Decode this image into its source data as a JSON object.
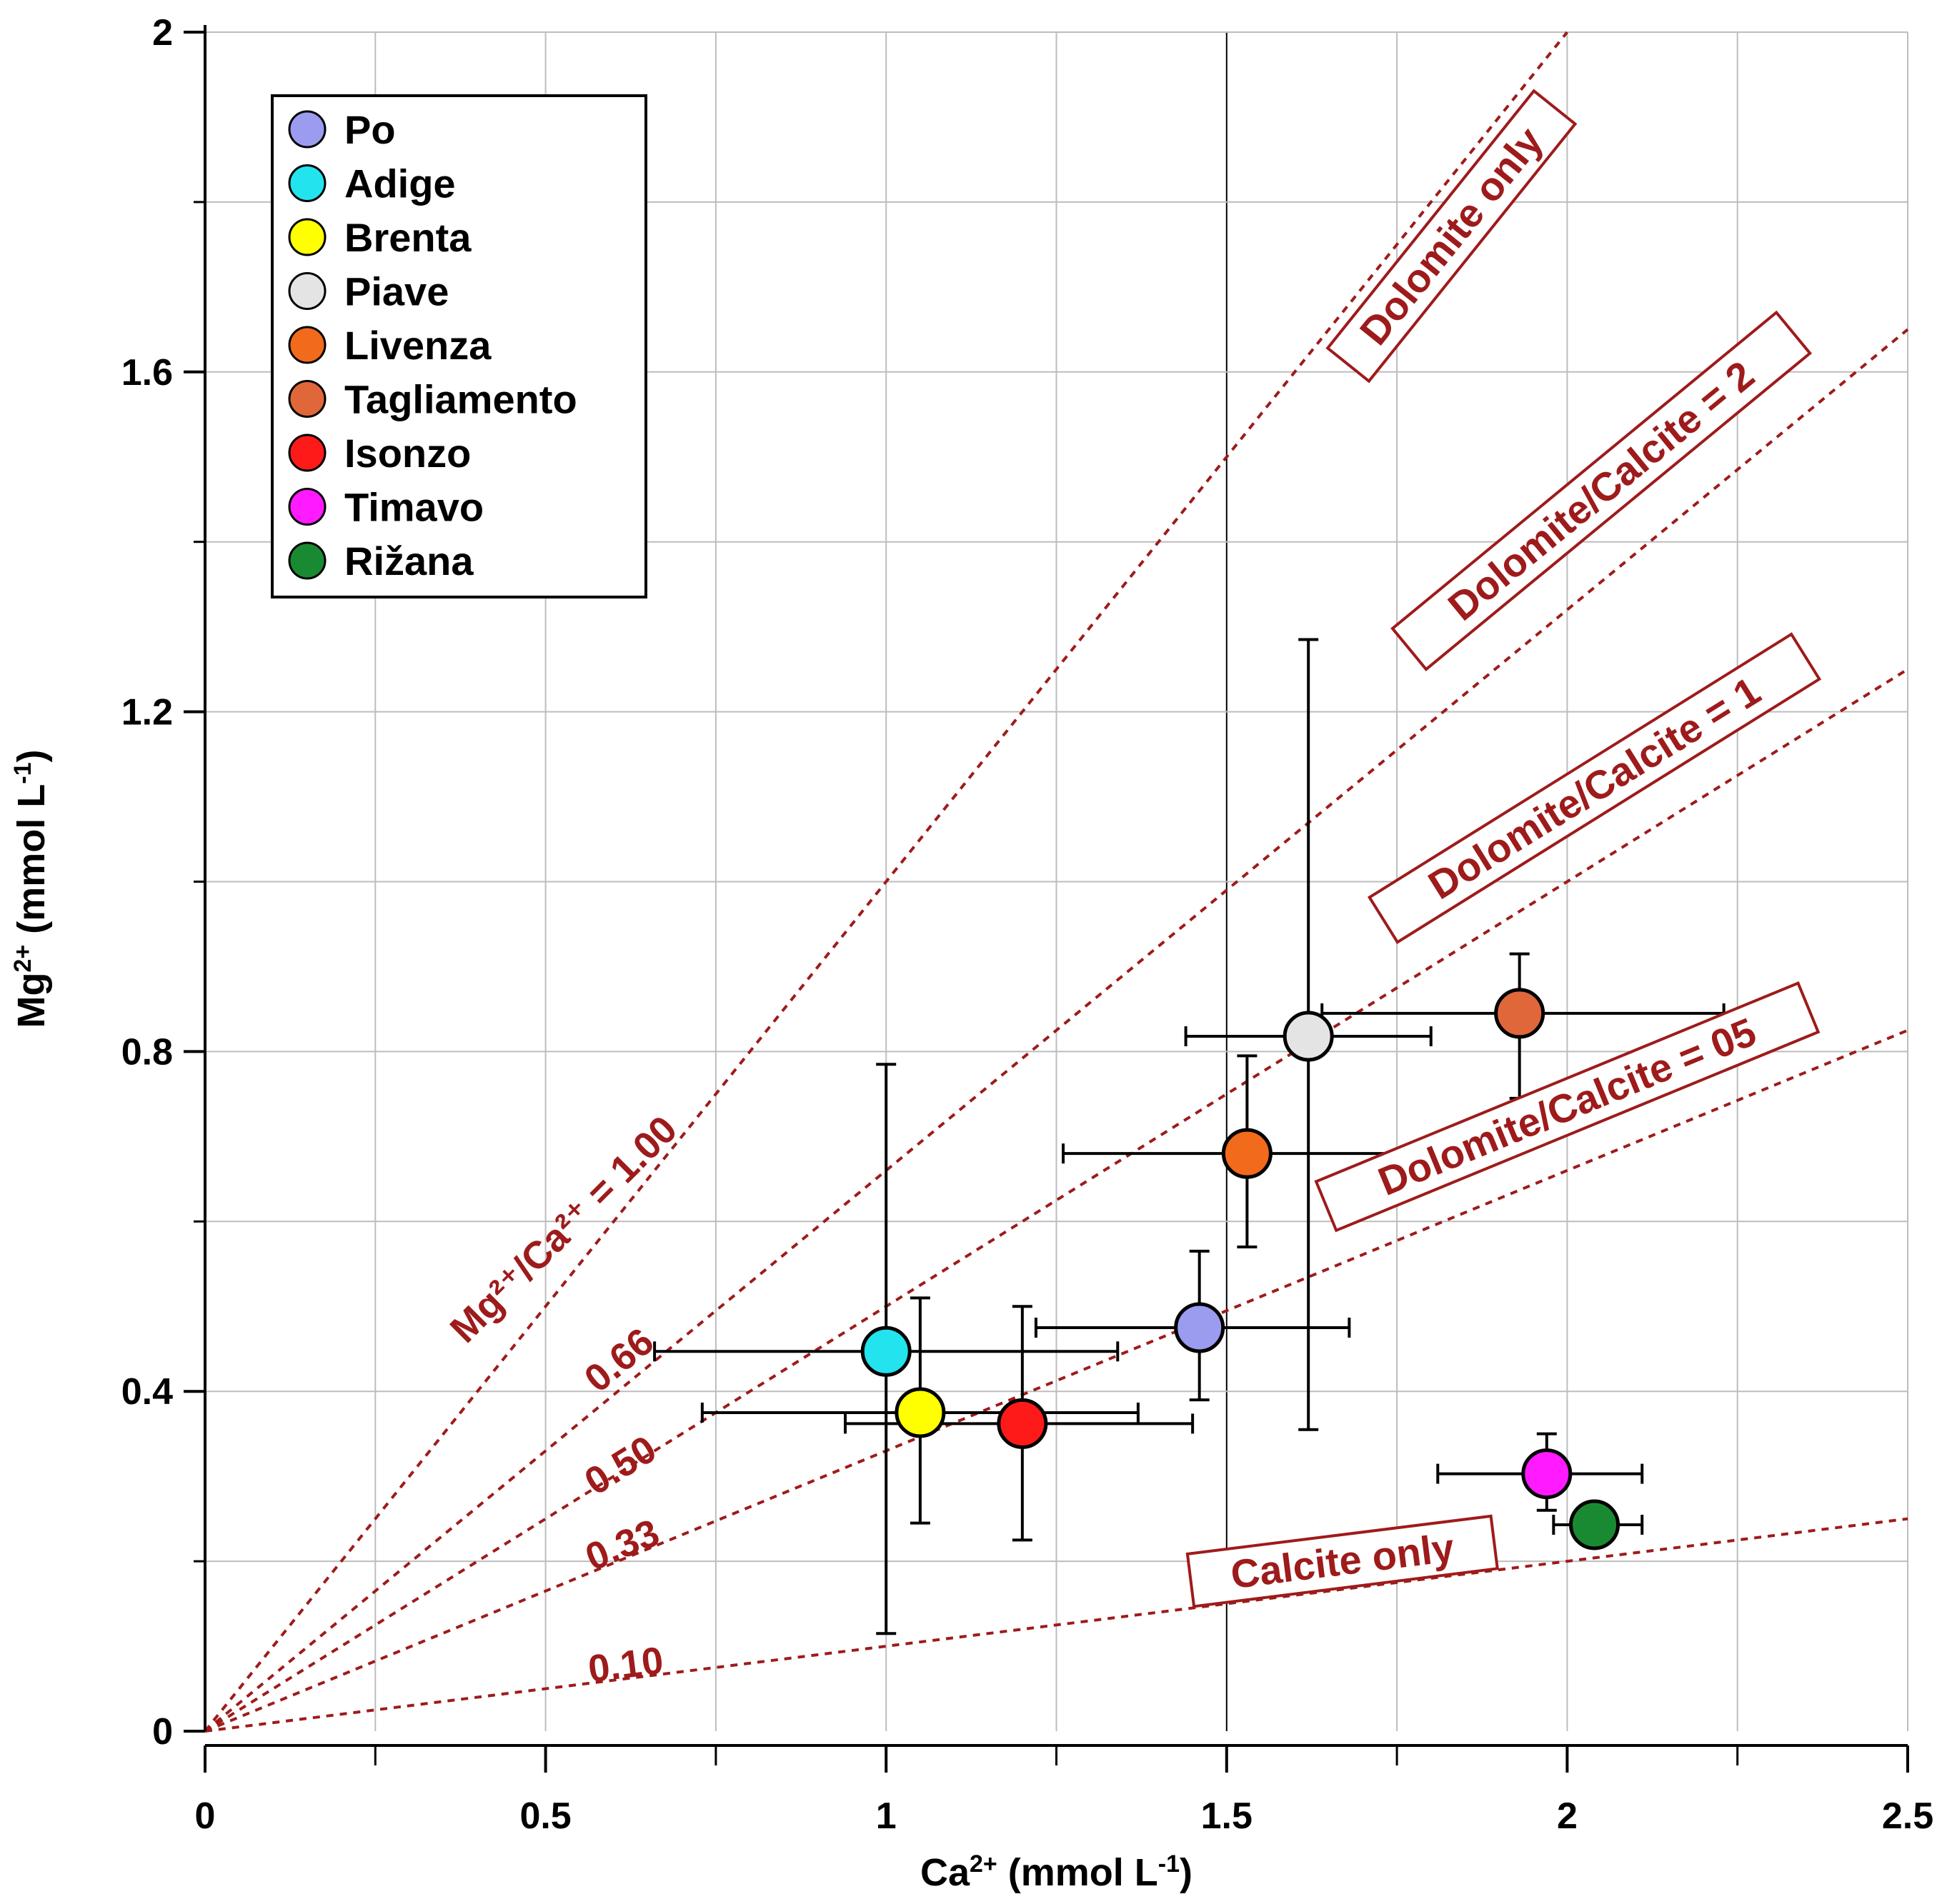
{
  "chart_data": {
    "type": "scatter",
    "title": "",
    "xlabel": {
      "base": "Ca",
      "sup": "2+",
      "rest": " (mmol L",
      "unit_sup": "-1",
      "close": ")"
    },
    "ylabel": {
      "base": "Mg",
      "sup": "2+",
      "rest": " (mmol L",
      "unit_sup": "-1",
      "close": ")"
    },
    "xlim": [
      0,
      2.5
    ],
    "ylim": [
      0,
      2
    ],
    "x_ticks": [
      {
        "value": 0,
        "label": "0"
      },
      {
        "value": 0.5,
        "label": "0.5"
      },
      {
        "value": 1,
        "label": "1"
      },
      {
        "value": 1.5,
        "label": "1.5"
      },
      {
        "value": 2,
        "label": "2"
      },
      {
        "value": 2.5,
        "label": "2.5"
      }
    ],
    "y_ticks": [
      {
        "value": 0,
        "label": "0"
      },
      {
        "value": 0.4,
        "label": "0.4"
      },
      {
        "value": 0.8,
        "label": "0.8"
      },
      {
        "value": 1.2,
        "label": "1.2"
      },
      {
        "value": 1.6,
        "label": "1.6"
      },
      {
        "value": 2,
        "label": "2"
      }
    ],
    "grid": true,
    "legend_position": "top-left",
    "series": [
      {
        "name": "Po",
        "color": "#9b9bef",
        "x": 1.46,
        "y": 0.475,
        "xerr": [
          1.22,
          1.68
        ],
        "yerr": [
          0.39,
          0.565
        ]
      },
      {
        "name": "Adige",
        "color": "#22e3ee",
        "x": 1.0,
        "y": 0.447,
        "xerr": [
          0.66,
          1.34
        ],
        "yerr": [
          0.115,
          0.785
        ]
      },
      {
        "name": "Brenta",
        "color": "#ffff00",
        "x": 1.05,
        "y": 0.375,
        "xerr": [
          0.73,
          1.37
        ],
        "yerr": [
          0.245,
          0.51
        ]
      },
      {
        "name": "Piave",
        "color": "#e4e4e4",
        "x": 1.62,
        "y": 0.818,
        "xerr": [
          1.44,
          1.8
        ],
        "yerr": [
          0.355,
          1.285
        ]
      },
      {
        "name": "Livenza",
        "color": "#f26a1b",
        "x": 1.53,
        "y": 0.68,
        "xerr": [
          1.26,
          1.8
        ],
        "yerr": [
          0.57,
          0.795
        ]
      },
      {
        "name": "Tagliamento",
        "color": "#e0673a",
        "x": 1.93,
        "y": 0.845,
        "xerr": [
          1.64,
          2.23
        ],
        "yerr": [
          0.745,
          0.915
        ]
      },
      {
        "name": "Isonzo",
        "color": "#ff1a1a",
        "x": 1.2,
        "y": 0.362,
        "xerr": [
          0.94,
          1.45
        ],
        "yerr": [
          0.225,
          0.5
        ]
      },
      {
        "name": "Timavo",
        "color": "#ff1aff",
        "x": 1.97,
        "y": 0.303,
        "xerr": [
          1.81,
          2.11
        ],
        "yerr": [
          0.26,
          0.35
        ]
      },
      {
        "name": "Rižana",
        "color": "#1a8a32",
        "x": 2.04,
        "y": 0.243,
        "xerr": [
          1.98,
          2.11
        ],
        "yerr": [
          0.225,
          0.265
        ]
      }
    ],
    "ratio_lines": [
      {
        "slope": 1.0,
        "label": "1.00",
        "end_x": 1.0,
        "label_x": 0.54,
        "label_y": 0.58,
        "rotated_label": "Mg2+/Ca2+ = 1.00"
      },
      {
        "slope": 0.66,
        "label": "0.66",
        "end_x": 1.55,
        "label_x": 0.62,
        "label_y": 0.425
      },
      {
        "slope": 0.5,
        "label": "0.50",
        "end_x": 1.65,
        "label_x": 0.62,
        "label_y": 0.3
      },
      {
        "slope": 0.33,
        "label": "0.33",
        "end_x": 1.7,
        "label_x": 0.62,
        "label_y": 0.205
      },
      {
        "slope": 0.1,
        "label": "0.10",
        "end_x": 2.1,
        "label_x": 0.62,
        "label_y": 0.063
      }
    ],
    "reference_lines": [
      {
        "slope": 1.0,
        "end_x": 2.0,
        "box_label": "Dolomite only",
        "box_x": 1.83,
        "box_y": 1.76
      },
      {
        "slope": 0.66,
        "end_x": 2.5,
        "box_label": "Dolomite/Calcite = 2",
        "box_x": 2.05,
        "box_y": 1.46
      },
      {
        "slope": 0.5,
        "end_x": 2.5,
        "box_label": "Dolomite/Calcite = 1",
        "box_x": 2.04,
        "box_y": 1.11
      },
      {
        "slope": 0.33,
        "end_x": 2.5,
        "box_label": "Dolomite/Calcite = 05",
        "box_x": 2.0,
        "box_y": 0.735
      },
      {
        "slope": 0.1,
        "end_x": 2.5,
        "box_label": "Calcite only",
        "box_x": 1.67,
        "box_y": 0.2
      }
    ]
  },
  "annotation_text": {
    "main_ratio": "Mg²⁺/Ca²⁺ = 1.00"
  },
  "colors": {
    "ratio_line": "#9e1b1b",
    "grid": "#bdbdbd",
    "axis": "#000000"
  }
}
